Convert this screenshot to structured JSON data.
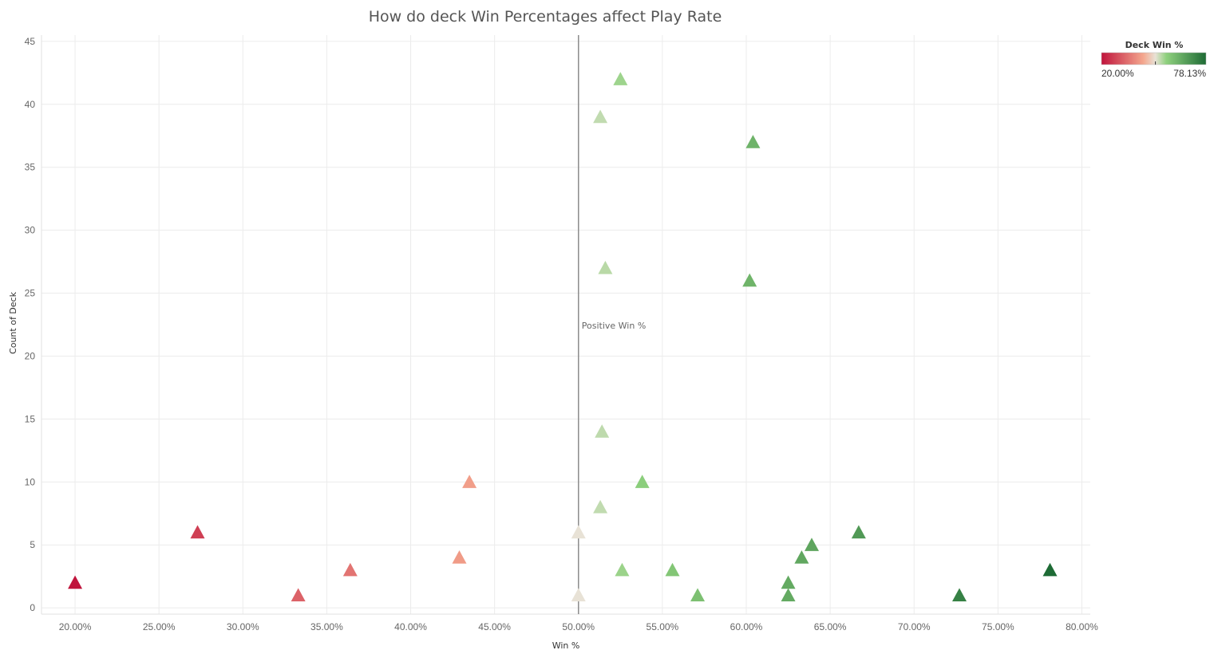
{
  "chart_data": {
    "type": "scatter",
    "title": "How do deck Win Percentages affect Play Rate",
    "xlabel": "Win %",
    "ylabel": "Count of Deck",
    "xlim": [
      0.18,
      0.805
    ],
    "ylim": [
      -0.5,
      45.5
    ],
    "x_ticks": [
      0.2,
      0.25,
      0.3,
      0.35,
      0.4,
      0.45,
      0.5,
      0.55,
      0.6,
      0.65,
      0.7,
      0.75,
      0.8
    ],
    "x_tick_labels": [
      "20.00%",
      "25.00%",
      "30.00%",
      "35.00%",
      "40.00%",
      "45.00%",
      "50.00%",
      "55.00%",
      "60.00%",
      "65.00%",
      "70.00%",
      "75.00%",
      "80.00%"
    ],
    "y_ticks": [
      0,
      5,
      10,
      15,
      20,
      25,
      30,
      35,
      40,
      45
    ],
    "y_tick_labels": [
      "0",
      "5",
      "10",
      "15",
      "20",
      "25",
      "30",
      "35",
      "40",
      "45"
    ],
    "grid": true,
    "marker": "triangle",
    "reference_line": {
      "x": 0.5,
      "label": "Positive Win %"
    },
    "legend": {
      "title": "Deck Win %",
      "min_label": "20.00%",
      "max_label": "78.13%",
      "min": 0.2,
      "max": 0.7813,
      "center": 0.5,
      "placement": "top-right"
    },
    "points": [
      {
        "x": 0.2,
        "y": 2
      },
      {
        "x": 0.273,
        "y": 6
      },
      {
        "x": 0.333,
        "y": 1
      },
      {
        "x": 0.364,
        "y": 3
      },
      {
        "x": 0.429,
        "y": 4
      },
      {
        "x": 0.435,
        "y": 10
      },
      {
        "x": 0.5,
        "y": 6
      },
      {
        "x": 0.5,
        "y": 1
      },
      {
        "x": 0.513,
        "y": 39
      },
      {
        "x": 0.513,
        "y": 8
      },
      {
        "x": 0.514,
        "y": 14
      },
      {
        "x": 0.516,
        "y": 27
      },
      {
        "x": 0.525,
        "y": 42
      },
      {
        "x": 0.526,
        "y": 3
      },
      {
        "x": 0.538,
        "y": 10
      },
      {
        "x": 0.556,
        "y": 3
      },
      {
        "x": 0.571,
        "y": 1
      },
      {
        "x": 0.602,
        "y": 26
      },
      {
        "x": 0.604,
        "y": 37
      },
      {
        "x": 0.625,
        "y": 2
      },
      {
        "x": 0.625,
        "y": 1
      },
      {
        "x": 0.633,
        "y": 4
      },
      {
        "x": 0.639,
        "y": 5
      },
      {
        "x": 0.667,
        "y": 6
      },
      {
        "x": 0.727,
        "y": 1
      },
      {
        "x": 0.781,
        "y": 3
      }
    ],
    "colors": {
      "low": "#c0143c",
      "mid_low": "#f4a78e",
      "mid": "#e8e2d6",
      "mid_high": "#8fd17e",
      "high": "#1e6b35",
      "gridline": "#ececec",
      "reference_line": "#8c8c8c"
    }
  }
}
